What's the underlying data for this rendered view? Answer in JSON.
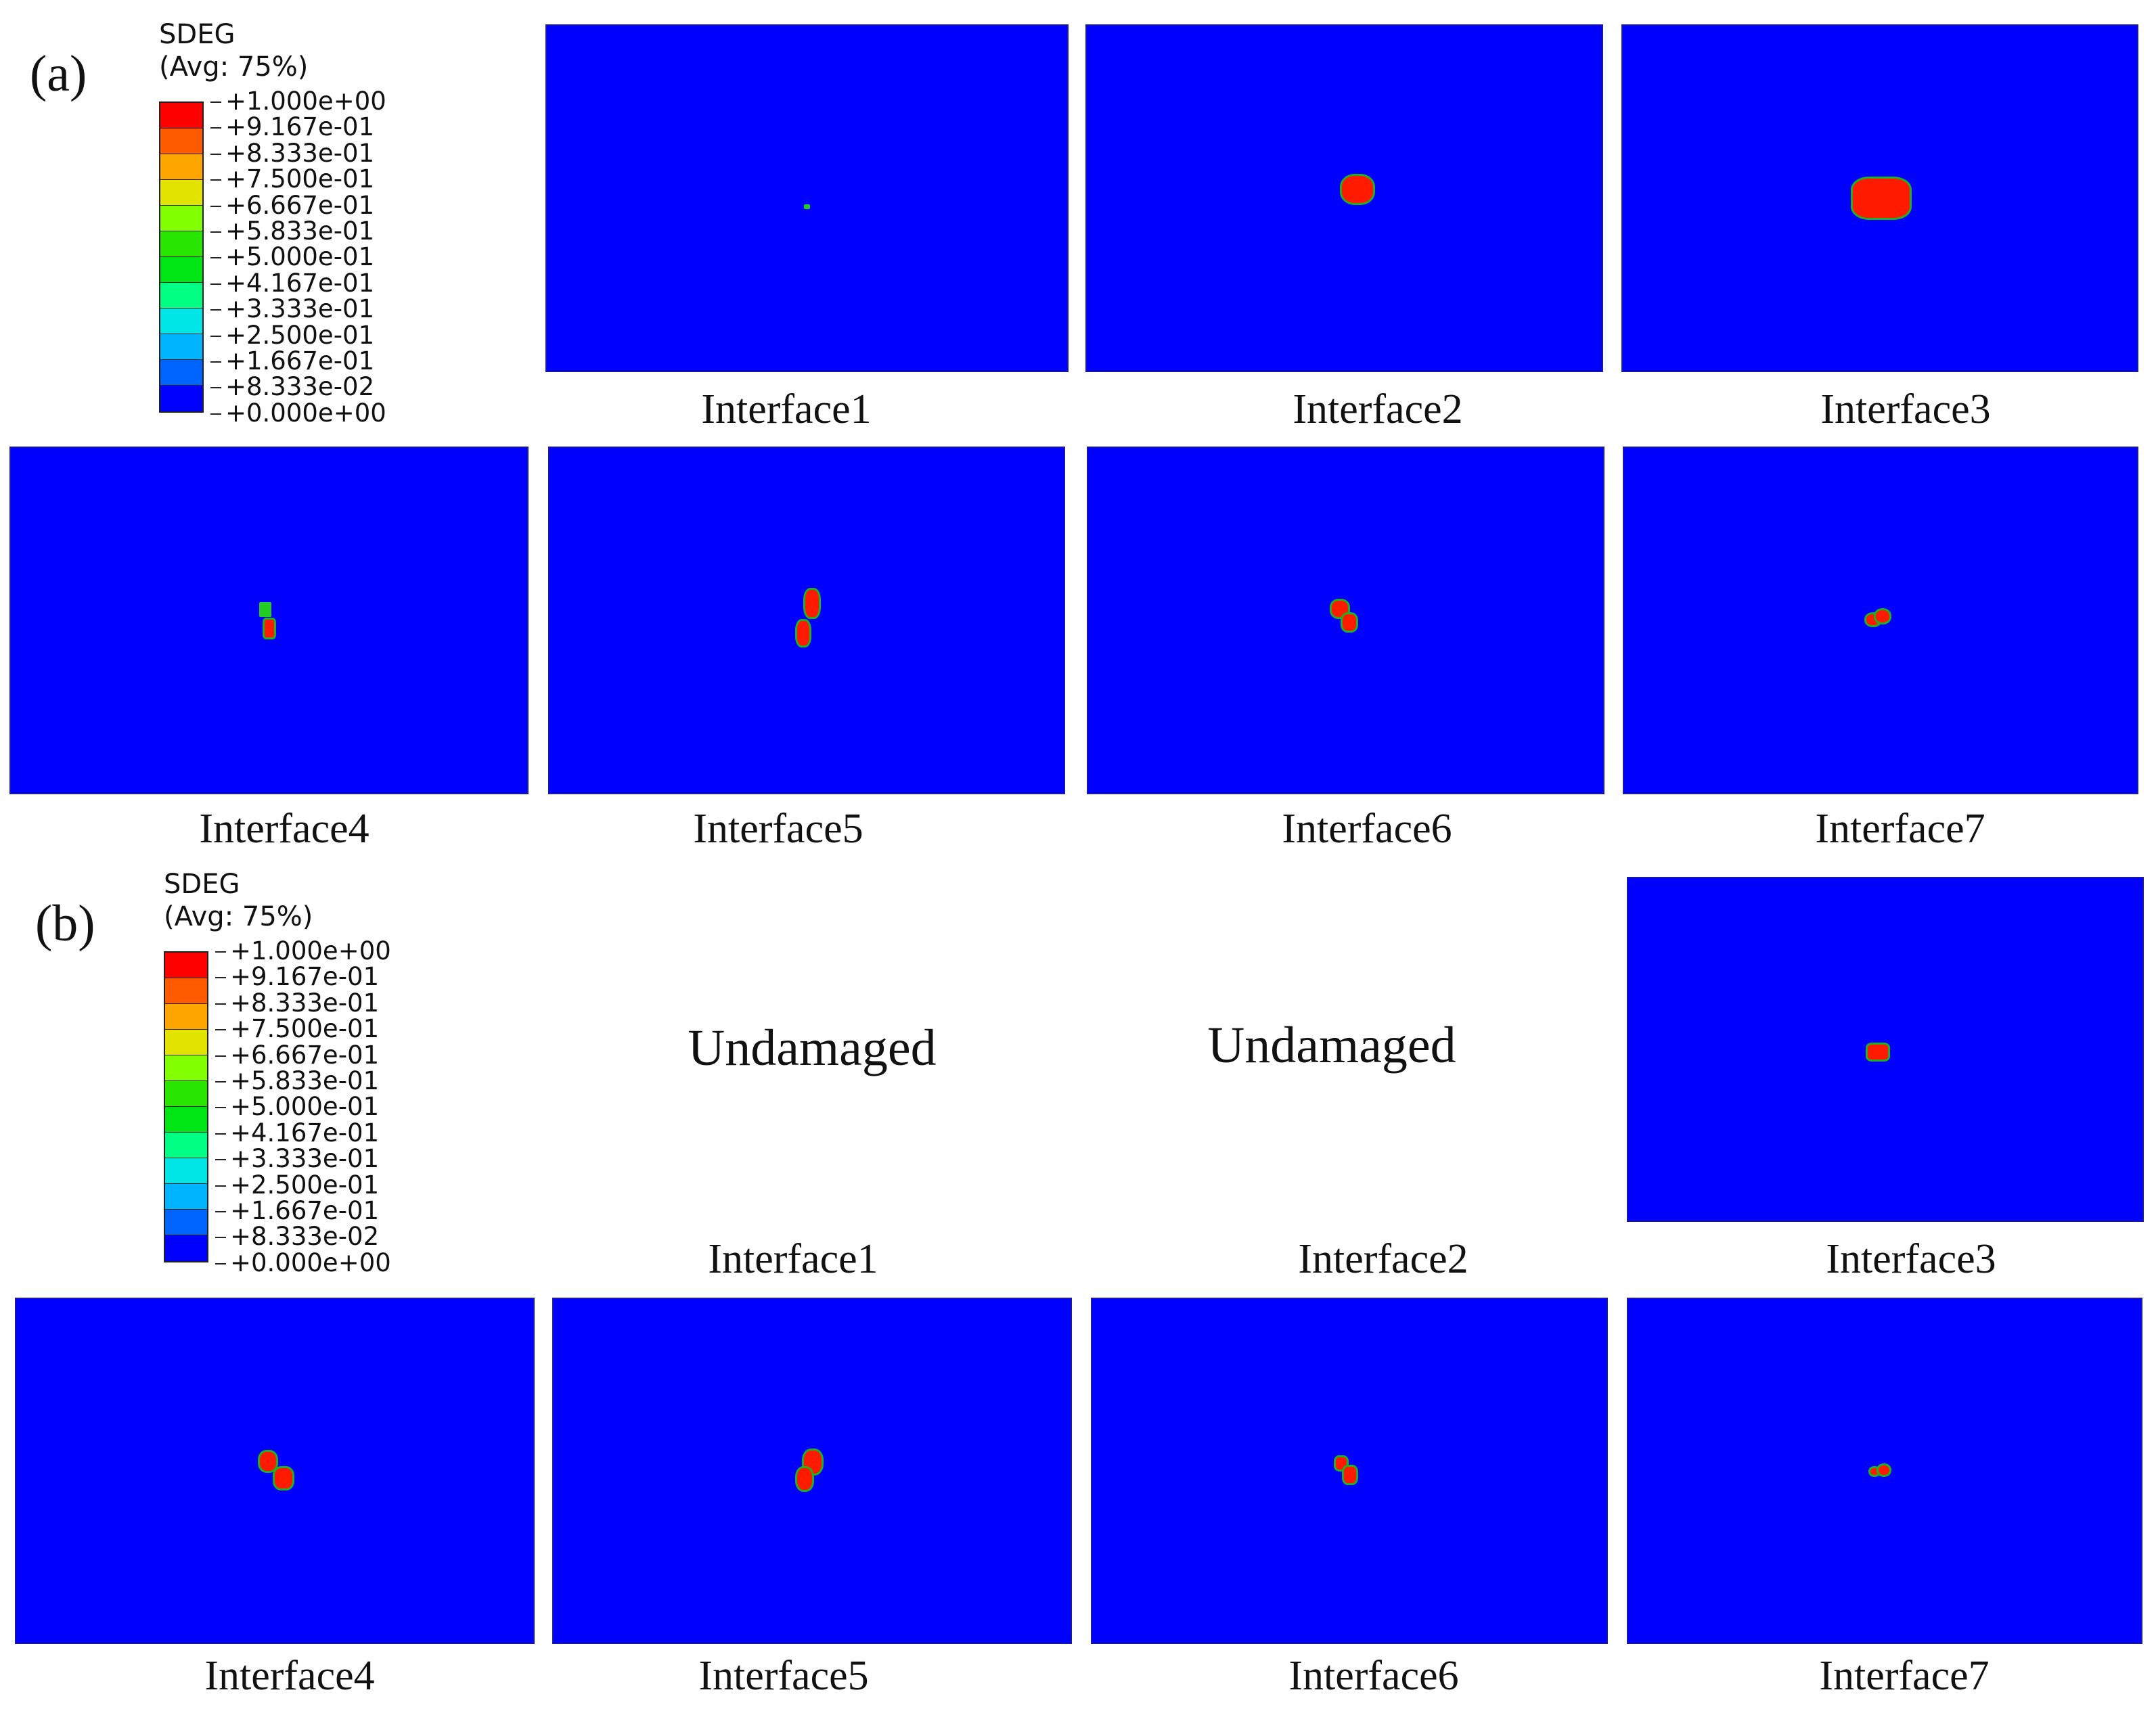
{
  "colors": {
    "plot_background": "#0000ff",
    "damage_full": "#ff1a00",
    "damage_edge": "#22cc22",
    "legend_bands": [
      "#ff0000",
      "#ff5a00",
      "#ffa500",
      "#e3e300",
      "#82ff00",
      "#28e600",
      "#00e614",
      "#00ff82",
      "#00e6e6",
      "#00b4ff",
      "#0064ff",
      "#0000ff"
    ]
  },
  "legend": {
    "title_line1": "SDEG",
    "title_line2": "(Avg: 75%)",
    "ticks": [
      "+1.000e+00",
      "+9.167e-01",
      "+8.333e-01",
      "+7.500e-01",
      "+6.667e-01",
      "+5.833e-01",
      "+5.000e-01",
      "+4.167e-01",
      "+3.333e-01",
      "+2.500e-01",
      "+1.667e-01",
      "+8.333e-02",
      "+0.000e+00"
    ]
  },
  "panel_a": {
    "letter": "(a)",
    "captions": [
      "Interface1",
      "Interface2",
      "Interface3",
      "Interface4",
      "Interface5",
      "Interface6",
      "Interface7"
    ]
  },
  "panel_b": {
    "letter": "(b)",
    "undamaged_label": "Undamaged",
    "captions": [
      "Interface1",
      "Interface2",
      "Interface3",
      "Interface4",
      "Interface5",
      "Interface6",
      "Interface7"
    ]
  }
}
